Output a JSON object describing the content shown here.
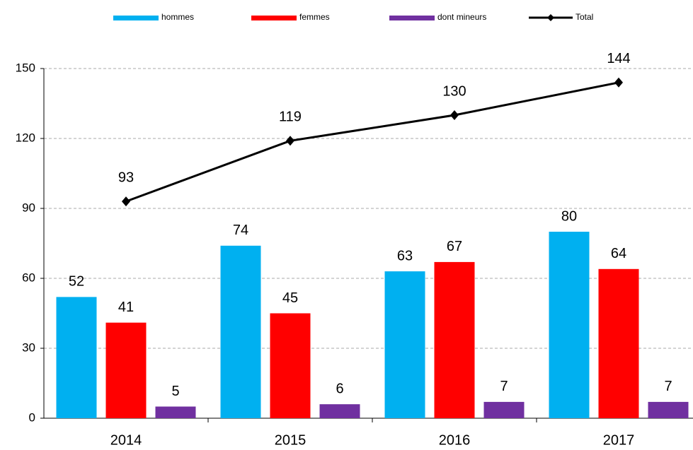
{
  "chart_data": {
    "type": "bar",
    "categories": [
      "2014",
      "2015",
      "2016",
      "2017"
    ],
    "series": [
      {
        "name": "hommes",
        "color": "#00b0f0",
        "values": [
          52,
          74,
          63,
          80
        ]
      },
      {
        "name": "femmes",
        "color": "#ff0000",
        "values": [
          41,
          45,
          67,
          64
        ]
      },
      {
        "name": "dont mineurs",
        "color": "#7030a0",
        "values": [
          5,
          6,
          7,
          7
        ]
      },
      {
        "name": "Total",
        "color": "#000000",
        "type": "line",
        "values": [
          93,
          119,
          130,
          144
        ]
      }
    ],
    "ylim": [
      0,
      150
    ],
    "yticks": [
      0,
      30,
      60,
      90,
      120,
      150
    ],
    "grid": true,
    "legend": "top"
  }
}
